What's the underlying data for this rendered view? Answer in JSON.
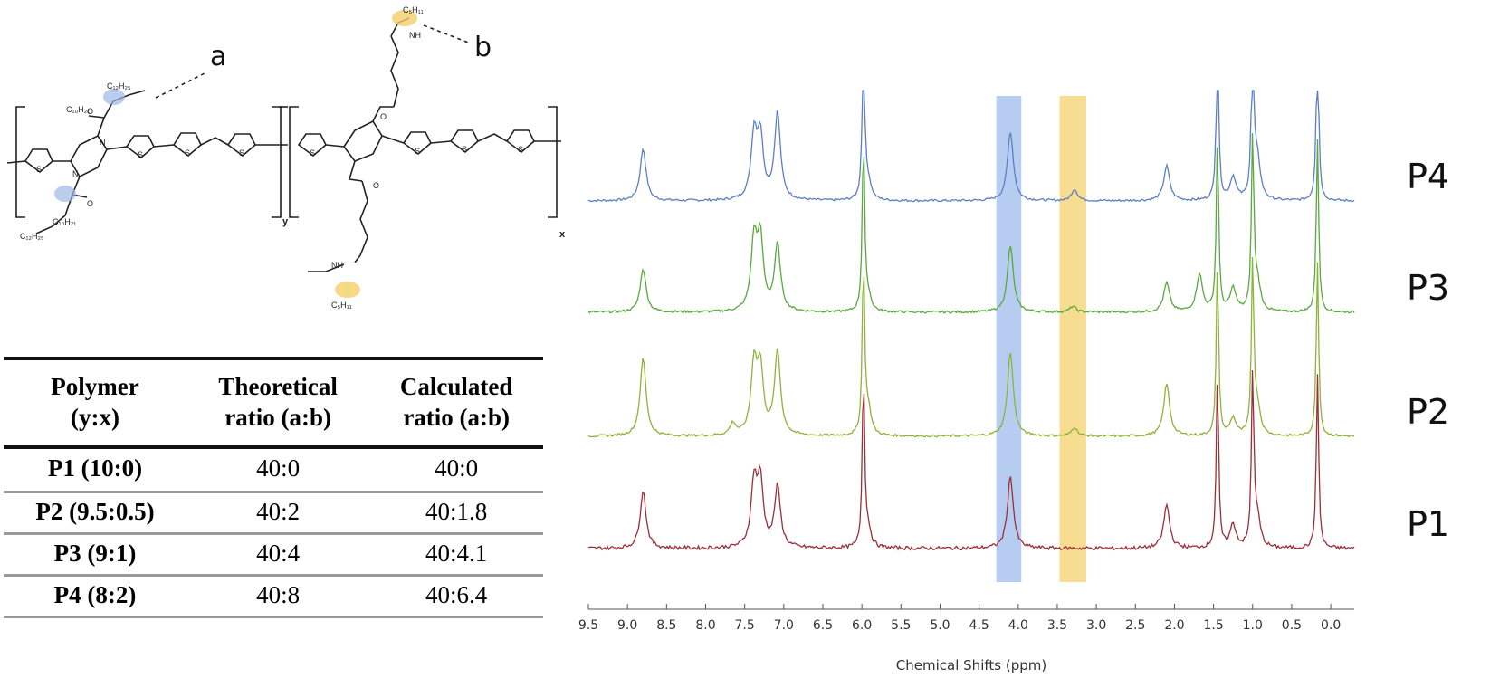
{
  "structure": {
    "labels": {
      "a": "a",
      "b": "b",
      "c10h21": "C₁₀H₂₁",
      "c12h25": "C₁₂H₂₅",
      "c5h11": "C₅H₁₁",
      "nh": "NH",
      "n": "N",
      "o": "O",
      "s": "S",
      "y": "y",
      "x": "x"
    },
    "colors": {
      "highlight_a": "#9db8e6",
      "highlight_b": "#f3cf6b"
    }
  },
  "table": {
    "headers": [
      [
        "Polymer",
        "(y:x)"
      ],
      [
        "Theoretical",
        "ratio (a:b)"
      ],
      [
        "Calculated",
        "ratio (a:b)"
      ]
    ],
    "rows": [
      {
        "polymer": "P1 (10:0)",
        "theoretical": "40:0",
        "calculated": "40:0"
      },
      {
        "polymer": "P2 (9.5:0.5)",
        "theoretical": "40:2",
        "calculated": "40:1.8"
      },
      {
        "polymer": "P3 (9:1)",
        "theoretical": "40:4",
        "calculated": "40:4.1"
      },
      {
        "polymer": "P4 (8:2)",
        "theoretical": "40:8",
        "calculated": "40:6.4"
      }
    ]
  },
  "chart_data": {
    "type": "line",
    "xlabel": "Chemical Shifts (ppm)",
    "xlim": [
      9.5,
      -0.3
    ],
    "x_reversed": true,
    "xticks": [
      "9.5",
      "9.0",
      "8.5",
      "8.0",
      "7.5",
      "7.0",
      "6.5",
      "6.0",
      "5.5",
      "5.0",
      "4.5",
      "4.0",
      "3.5",
      "3.0",
      "2.5",
      "2.0",
      "1.5",
      "1.0",
      "0.5",
      "0.0"
    ],
    "highlight_bands": [
      {
        "from": 4.28,
        "to": 3.96,
        "color": "#a9c4ee"
      },
      {
        "from": 3.47,
        "to": 3.13,
        "color": "#f6d77c"
      }
    ],
    "series": [
      {
        "name": "P4",
        "color": "#5b7fc6",
        "peaks": [
          [
            8.8,
            18
          ],
          [
            7.38,
            22
          ],
          [
            7.3,
            21
          ],
          [
            7.08,
            30
          ],
          [
            5.98,
            60
          ],
          [
            5.92,
            6
          ],
          [
            4.1,
            24
          ],
          [
            3.28,
            4
          ],
          [
            2.1,
            12
          ],
          [
            1.45,
            60
          ],
          [
            1.25,
            8
          ],
          [
            1.0,
            60
          ],
          [
            0.94,
            14
          ],
          [
            0.17,
            60
          ]
        ]
      },
      {
        "name": "P3",
        "color": "#5aa83e",
        "peaks": [
          [
            8.8,
            15
          ],
          [
            7.38,
            24
          ],
          [
            7.3,
            24
          ],
          [
            7.08,
            23
          ],
          [
            5.98,
            60
          ],
          [
            5.92,
            5
          ],
          [
            4.1,
            23
          ],
          [
            3.3,
            2
          ],
          [
            2.1,
            10
          ],
          [
            1.68,
            13
          ],
          [
            1.45,
            60
          ],
          [
            1.25,
            8
          ],
          [
            1.0,
            60
          ],
          [
            0.94,
            10
          ],
          [
            0.17,
            60
          ]
        ]
      },
      {
        "name": "P2",
        "color": "#8db33a",
        "peaks": [
          [
            8.8,
            27
          ],
          [
            7.65,
            4
          ],
          [
            7.38,
            24
          ],
          [
            7.3,
            22
          ],
          [
            7.08,
            29
          ],
          [
            5.98,
            60
          ],
          [
            5.92,
            9
          ],
          [
            4.1,
            29
          ],
          [
            3.28,
            3
          ],
          [
            2.1,
            18
          ],
          [
            1.45,
            60
          ],
          [
            1.25,
            6
          ],
          [
            1.0,
            60
          ],
          [
            0.94,
            10
          ],
          [
            0.17,
            60
          ]
        ]
      },
      {
        "name": "P1",
        "color": "#9c2e36",
        "peaks": [
          [
            8.8,
            20
          ],
          [
            7.38,
            22
          ],
          [
            7.3,
            22
          ],
          [
            7.08,
            21
          ],
          [
            5.98,
            60
          ],
          [
            5.92,
            6
          ],
          [
            4.1,
            25
          ],
          [
            2.1,
            15
          ],
          [
            1.45,
            60
          ],
          [
            1.25,
            8
          ],
          [
            1.0,
            60
          ],
          [
            0.94,
            10
          ],
          [
            0.17,
            60
          ]
        ]
      }
    ]
  }
}
